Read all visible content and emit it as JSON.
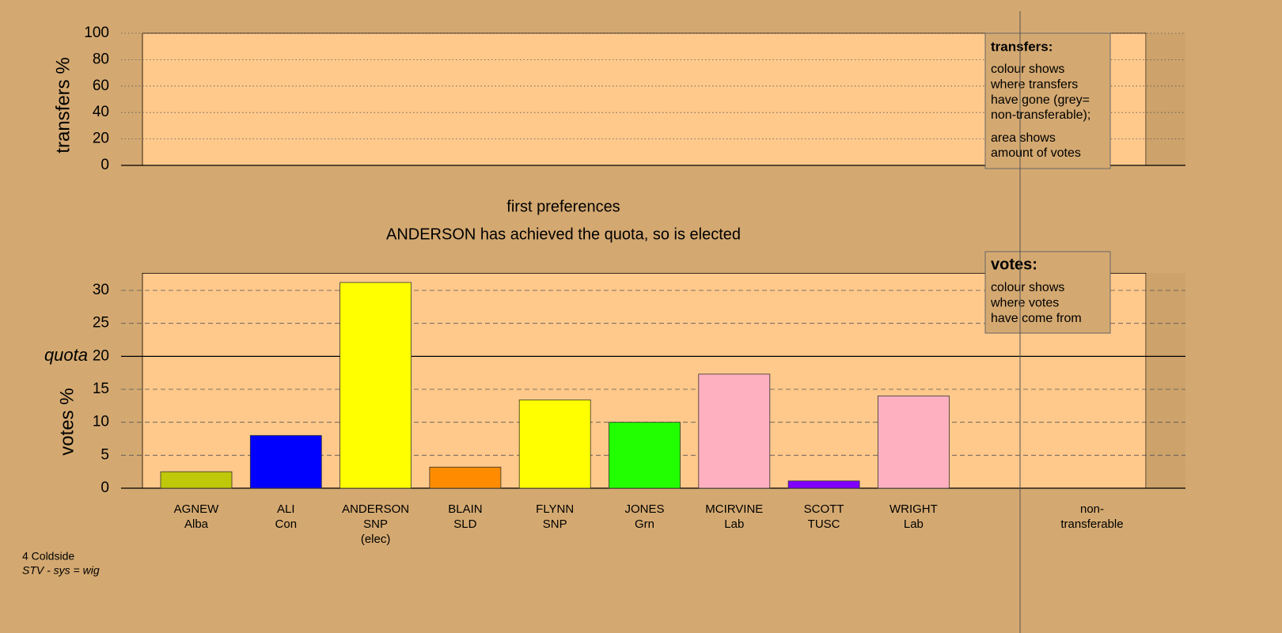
{
  "chart_data": [
    {
      "type": "bar",
      "ylabel": "transfers %",
      "ylim": [
        0,
        100
      ],
      "yticks": [
        0,
        20,
        40,
        60,
        80,
        100
      ],
      "grid": true,
      "grid_style": "dotted",
      "legend": {
        "title": "transfers:",
        "paragraphs": [
          [
            "colour shows",
            "where transfers",
            "have gone (grey=",
            "non-transferable);"
          ],
          [
            "area shows",
            "amount of votes"
          ]
        ]
      }
    },
    {
      "type": "bar",
      "title": "first preferences",
      "subtitle": "ANDERSON has achieved the quota, so is elected",
      "ylabel": "votes %",
      "ylim": [
        0,
        32.6
      ],
      "yticks": [
        0,
        5,
        10,
        15,
        20,
        25,
        30
      ],
      "grid": true,
      "grid_style": "dashed",
      "quota": 20,
      "quota_label": "quota",
      "categories": [
        [
          "AGNEW",
          "Alba"
        ],
        [
          "ALI",
          "Con"
        ],
        [
          "ANDERSON",
          "SNP",
          "(elec)"
        ],
        [
          "BLAIN",
          "SLD"
        ],
        [
          "FLYNN",
          "SNP"
        ],
        [
          "JONES",
          "Grn"
        ],
        [
          "MCIRVINE",
          "Lab"
        ],
        [
          "SCOTT",
          "TUSC"
        ],
        [
          "WRIGHT",
          "Lab"
        ],
        [
          "non-",
          "transferable"
        ]
      ],
      "values": [
        2.5,
        8.0,
        31.2,
        3.2,
        13.4,
        10.0,
        17.3,
        1.1,
        14.0,
        null
      ],
      "colors": [
        "#c0c80a",
        "#0000ff",
        "#ffff00",
        "#ff8c00",
        "#ffff00",
        "#22ff00",
        "#ffb0c0",
        "#8000ff",
        "#ffb0c0",
        null
      ],
      "legend": {
        "title": "votes:",
        "paragraphs": [
          [
            "colour shows",
            "where votes",
            "have come from"
          ]
        ]
      }
    }
  ],
  "footnote": {
    "ward": "4 Coldside",
    "system": "STV - sys = wig"
  }
}
